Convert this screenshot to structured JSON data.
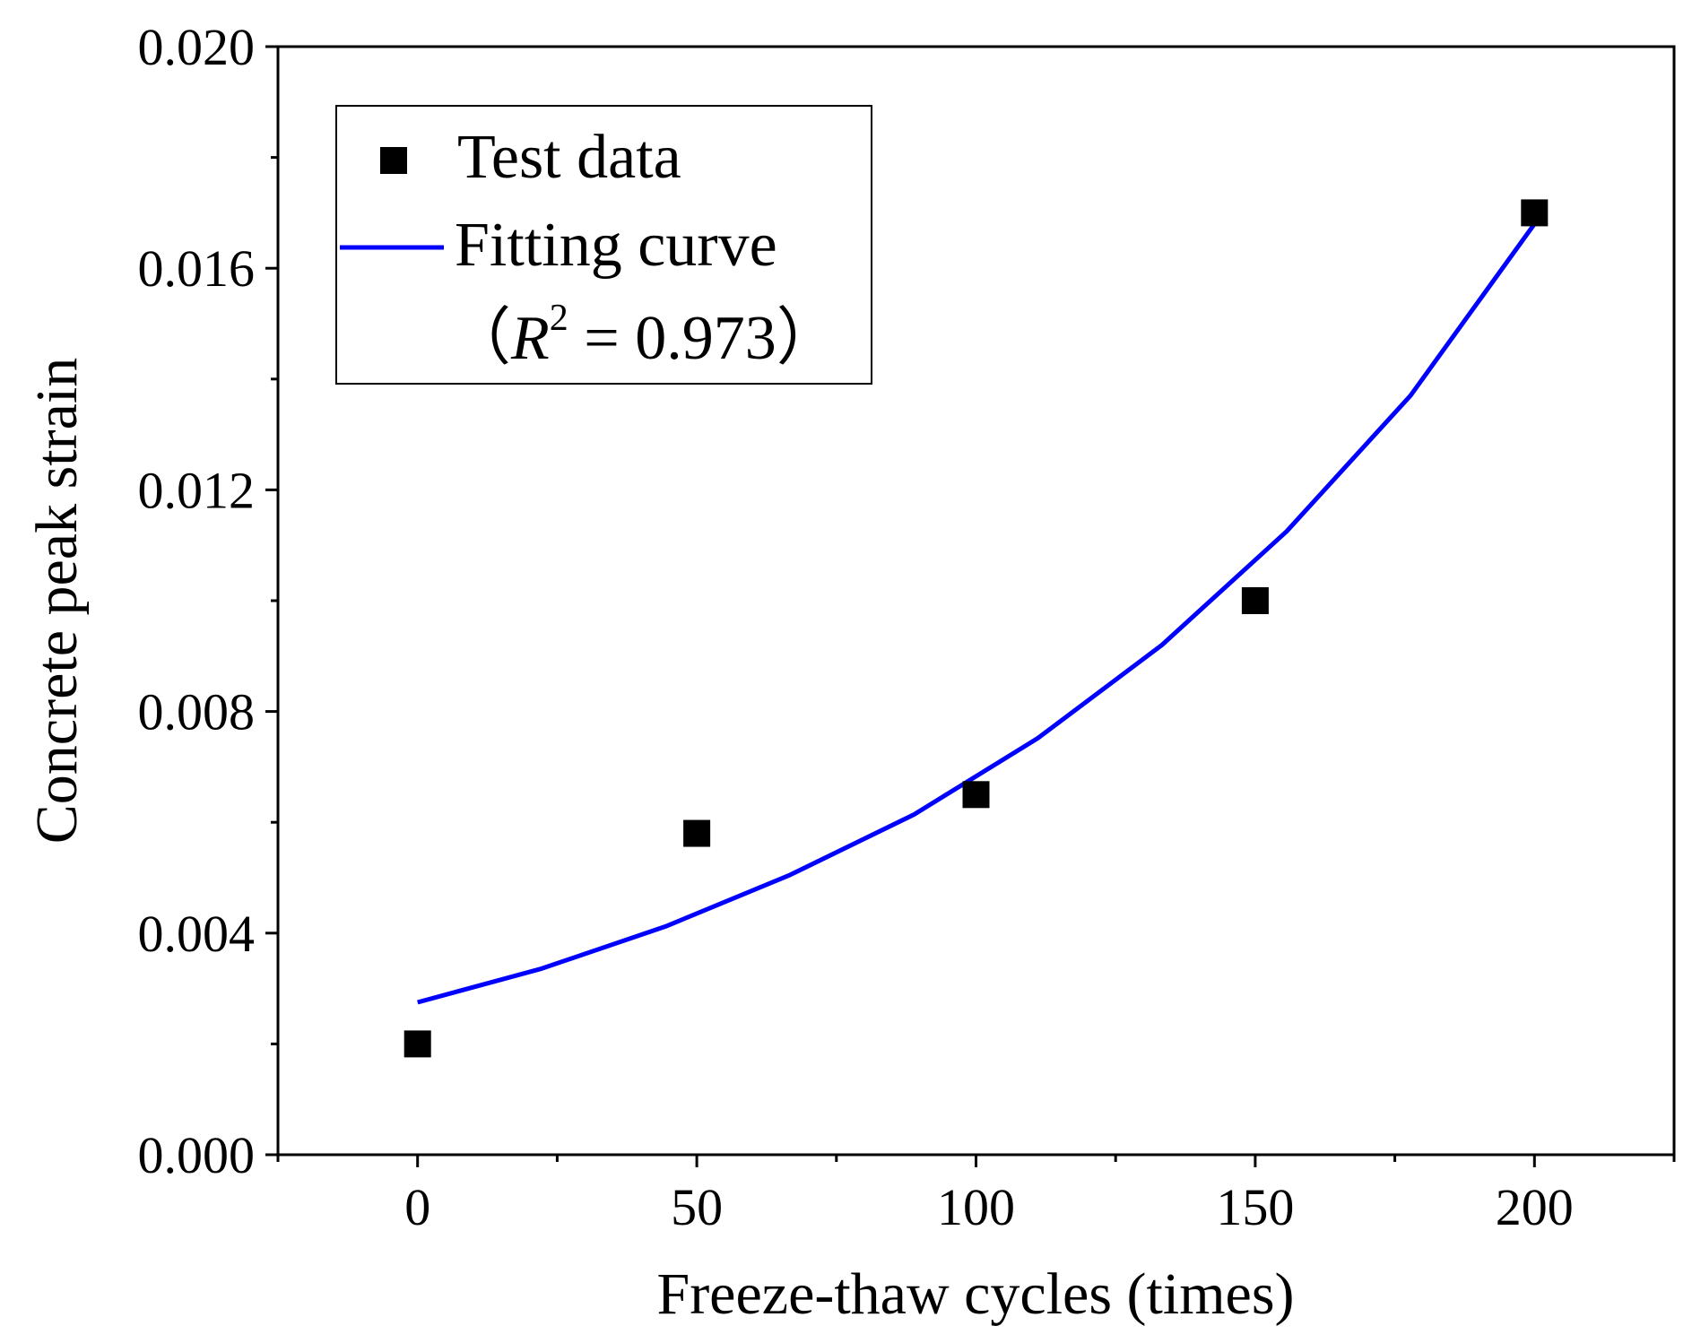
{
  "chart_data": {
    "type": "scatter",
    "xlabel": "Freeze-thaw cycles (times)",
    "ylabel": "Concrete peak strain",
    "xlim": [
      -25,
      225
    ],
    "ylim": [
      0,
      0.02
    ],
    "x_ticks": [
      0,
      50,
      100,
      150,
      200
    ],
    "x_tick_labels": [
      "0",
      "50",
      "100",
      "150",
      "200"
    ],
    "y_ticks": [
      0,
      0.004,
      0.008,
      0.012,
      0.016,
      0.02
    ],
    "y_tick_labels": [
      "0.000",
      "0.004",
      "0.008",
      "0.012",
      "0.016",
      "0.020"
    ],
    "grid": false,
    "legend_position": "top-left",
    "series": [
      {
        "name": "Test data",
        "kind": "scatter",
        "marker": "square",
        "color": "#000000",
        "x": [
          0,
          50,
          100,
          150,
          200
        ],
        "y": [
          0.002,
          0.0058,
          0.0065,
          0.01,
          0.017
        ]
      },
      {
        "name": "Fitting curve",
        "kind": "line",
        "color": "#0000ff",
        "x": [
          0,
          22.2,
          44.4,
          66.7,
          88.9,
          111.1,
          133.3,
          155.6,
          177.8,
          200
        ],
        "y": [
          0.00275,
          0.00336,
          0.00412,
          0.00505,
          0.00614,
          0.00752,
          0.0092,
          0.01125,
          0.0137,
          0.0168
        ]
      }
    ],
    "annotation": {
      "open": "（",
      "var": "R",
      "sup": "2",
      "rest": " = 0.973",
      "close": "）"
    }
  }
}
